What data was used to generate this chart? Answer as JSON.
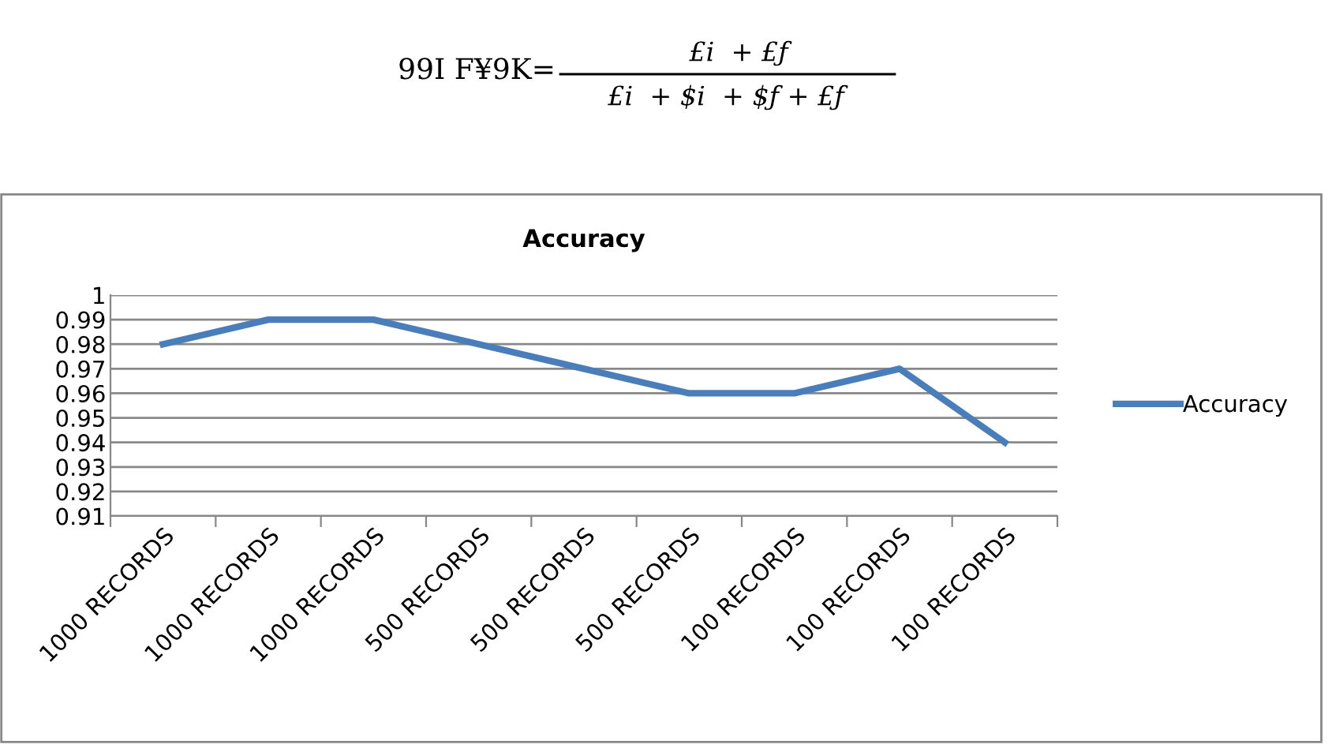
{
  "chart_data": {
    "type": "line",
    "title": "Accuracy",
    "categories": [
      "1000 RECORDS",
      "1000 RECORDS",
      "1000 RECORDS",
      "500 RECORDS",
      "500 RECORDS",
      "500 RECORDS",
      "100 RECORDS",
      "100 RECORDS",
      "100 RECORDS"
    ],
    "series": [
      {
        "name": "Accuracy",
        "color": "#4a7ebb",
        "values": [
          0.98,
          0.99,
          0.99,
          0.98,
          0.97,
          0.96,
          0.96,
          0.97,
          0.94
        ]
      }
    ],
    "ylim": [
      0.91,
      1
    ],
    "yticks": [
      0.91,
      0.92,
      0.93,
      0.94,
      0.95,
      0.96,
      0.97,
      0.98,
      0.99,
      1
    ],
    "grid": "y",
    "legend": "right",
    "marker": "none",
    "line_style": "solid",
    "annotations": [
      "99I F¥9K=",
      "£i  + £ƒ",
      "£i  + $i  + $ƒ + £ƒ"
    ]
  }
}
